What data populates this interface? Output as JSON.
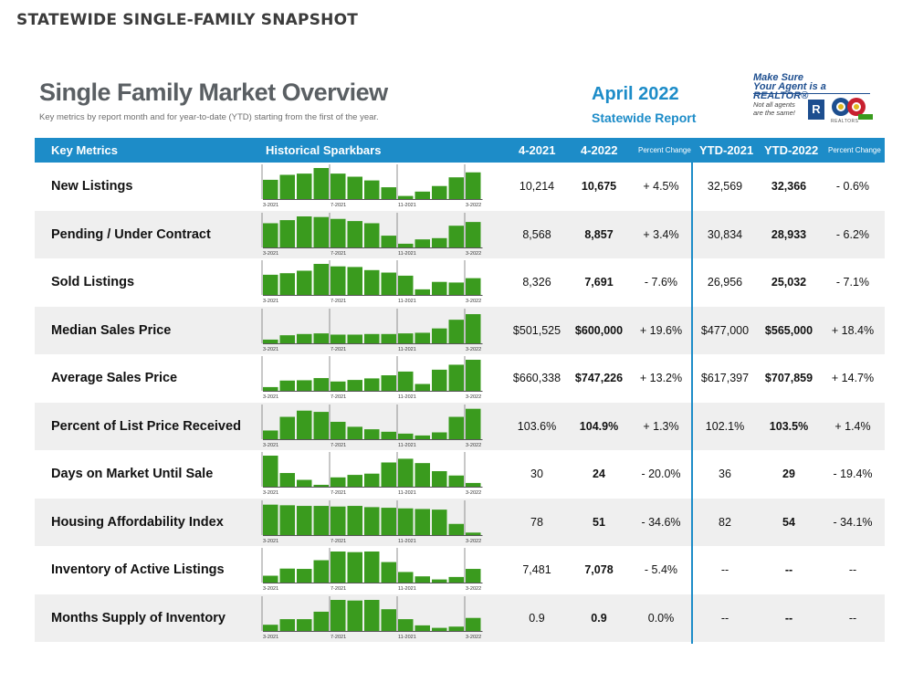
{
  "page_heading": "STATEWIDE SINGLE-FAMILY SNAPSHOT",
  "title": "Single Family Market Overview",
  "subtitle": "Key metrics by report month and for year-to-date (YTD) starting from the first of the year.",
  "month": "April 2022",
  "report_label": "Statewide Report",
  "realtor": {
    "tagline_1": "Make Sure",
    "tagline_2": "Your Agent is a REALTOR®",
    "note_1": "Not all agents",
    "note_2": "are the same!",
    "logo_text": "REALTORS"
  },
  "headers": {
    "key_metrics": "Key Metrics",
    "sparkbars": "Historical Sparkbars",
    "m2021": "4-2021",
    "m2022": "4-2022",
    "pct": "Percent Change",
    "ytd2021": "YTD-2021",
    "ytd2022": "YTD-2022",
    "ytd_pct": "Percent Change"
  },
  "colors": {
    "accent": "#1d8cc8",
    "bar": "#3a9b1e",
    "row_shade": "#efefef"
  },
  "chart_data": {
    "type": "bar",
    "tick_labels": [
      "3-2021",
      "7-2021",
      "11-2021",
      "3-2022"
    ],
    "rows": [
      {
        "metric": "New Listings",
        "m2021": "10,214",
        "m2022": "10,675",
        "pct": "+ 4.5%",
        "ytd2021": "32,569",
        "ytd2022": "32,366",
        "ytd_pct": "- 0.6%",
        "values": [
          0.62,
          0.78,
          0.82,
          1.0,
          0.82,
          0.72,
          0.6,
          0.38,
          0.1,
          0.24,
          0.42,
          0.7,
          0.86
        ]
      },
      {
        "metric": "Pending / Under Contract",
        "m2021": "8,568",
        "m2022": "8,857",
        "pct": "+ 3.4%",
        "ytd2021": "30,834",
        "ytd2022": "28,933",
        "ytd_pct": "- 6.2%",
        "values": [
          0.78,
          0.88,
          1.0,
          0.98,
          0.92,
          0.85,
          0.78,
          0.38,
          0.12,
          0.26,
          0.3,
          0.7,
          0.82
        ]
      },
      {
        "metric": "Sold Listings",
        "m2021": "8,326",
        "m2022": "7,691",
        "pct": "- 7.6%",
        "ytd2021": "26,956",
        "ytd2022": "25,032",
        "ytd_pct": "- 7.1%",
        "values": [
          0.65,
          0.7,
          0.78,
          1.0,
          0.92,
          0.9,
          0.8,
          0.72,
          0.62,
          0.18,
          0.42,
          0.4,
          0.54
        ]
      },
      {
        "metric": "Median Sales Price",
        "m2021": "$501,525",
        "m2022": "$600,000",
        "pct": "+ 19.6%",
        "ytd2021": "$477,000",
        "ytd2022": "$565,000",
        "ytd_pct": "+ 18.4%",
        "values": [
          0.12,
          0.26,
          0.3,
          0.32,
          0.28,
          0.28,
          0.3,
          0.3,
          0.32,
          0.34,
          0.48,
          0.76,
          0.94
        ]
      },
      {
        "metric": "Average Sales Price",
        "m2021": "$660,338",
        "m2022": "$747,226",
        "pct": "+ 13.2%",
        "ytd2021": "$617,397",
        "ytd2022": "$707,859",
        "ytd_pct": "+ 14.7%",
        "values": [
          0.12,
          0.33,
          0.34,
          0.41,
          0.3,
          0.35,
          0.4,
          0.5,
          0.62,
          0.22,
          0.68,
          0.84,
          1.0
        ]
      },
      {
        "metric": "Percent of List Price Received",
        "m2021": "103.6%",
        "m2022": "104.9%",
        "pct": "+ 1.3%",
        "ytd2021": "102.1%",
        "ytd2022": "103.5%",
        "ytd_pct": "+ 1.4%",
        "values": [
          0.28,
          0.72,
          0.92,
          0.88,
          0.56,
          0.4,
          0.32,
          0.24,
          0.18,
          0.12,
          0.22,
          0.72,
          0.98
        ]
      },
      {
        "metric": "Days on Market Until Sale",
        "m2021": "30",
        "m2022": "24",
        "pct": "- 20.0%",
        "ytd2021": "36",
        "ytd2022": "29",
        "ytd_pct": "- 19.4%",
        "values": [
          1.0,
          0.44,
          0.22,
          0.06,
          0.3,
          0.38,
          0.42,
          0.78,
          0.9,
          0.76,
          0.5,
          0.36,
          0.12
        ]
      },
      {
        "metric": "Housing Affordability Index",
        "m2021": "78",
        "m2022": "51",
        "pct": "- 34.6%",
        "ytd2021": "82",
        "ytd2022": "54",
        "ytd_pct": "- 34.1%",
        "values": [
          0.98,
          0.96,
          0.94,
          0.94,
          0.92,
          0.94,
          0.9,
          0.88,
          0.86,
          0.84,
          0.82,
          0.36,
          0.08
        ]
      },
      {
        "metric": "Inventory of Active Listings",
        "m2021": "7,481",
        "m2022": "7,078",
        "pct": "- 5.4%",
        "ytd2021": "--",
        "ytd2022": "--",
        "ytd_pct": "--",
        "values": [
          0.22,
          0.45,
          0.44,
          0.72,
          1.0,
          0.98,
          1.0,
          0.66,
          0.34,
          0.2,
          0.1,
          0.18,
          0.44
        ]
      },
      {
        "metric": "Months Supply of Inventory",
        "m2021": "0.9",
        "m2022": "0.9",
        "pct": "0.0%",
        "ytd2021": "--",
        "ytd2022": "--",
        "ytd_pct": "--",
        "values": [
          0.2,
          0.38,
          0.38,
          0.62,
          1.0,
          0.98,
          1.0,
          0.7,
          0.38,
          0.18,
          0.1,
          0.14,
          0.42
        ]
      }
    ]
  }
}
